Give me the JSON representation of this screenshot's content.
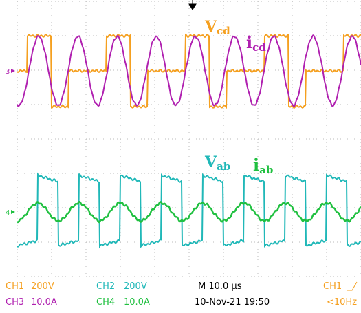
{
  "trace_labels": [
    {
      "main": "V",
      "sub": "cd"
    },
    {
      "main": "i",
      "sub": "cd"
    },
    {
      "main": "V",
      "sub": "ab"
    },
    {
      "main": "i",
      "sub": "ab"
    }
  ],
  "markers": {
    "ch3": "3",
    "ch4": "4"
  },
  "status": {
    "row1": [
      "CH1",
      "200V",
      "CH2",
      "200V",
      "M 10.0 µs",
      "CH1"
    ],
    "row2": [
      "CH3",
      "10.0A",
      "CH4",
      "10.0A",
      "10-Nov-21 19:50",
      "<10Hz"
    ]
  }
}
